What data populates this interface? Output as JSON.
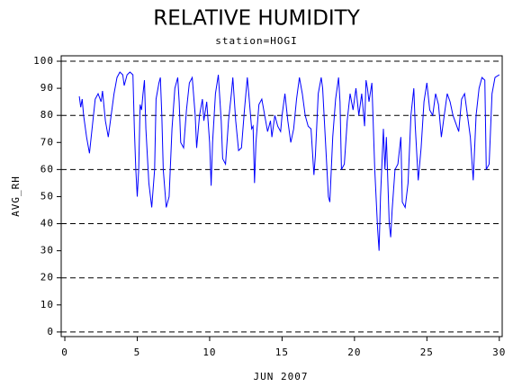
{
  "chart_data": {
    "type": "line",
    "title": "RELATIVE HUMIDITY",
    "subtitle": "station=HOGI",
    "x_label": "JUN 2007",
    "y_label": "AVG_RH",
    "x": [
      1.0,
      1.1,
      1.2,
      1.3,
      1.5,
      1.7,
      1.9,
      2.1,
      2.3,
      2.5,
      2.6,
      2.8,
      3.0,
      3.2,
      3.4,
      3.6,
      3.8,
      4.0,
      4.1,
      4.3,
      4.5,
      4.7,
      4.8,
      4.9,
      5.0,
      5.1,
      5.2,
      5.3,
      5.4,
      5.5,
      5.6,
      5.8,
      6.0,
      6.2,
      6.3,
      6.5,
      6.6,
      6.7,
      6.8,
      7.0,
      7.2,
      7.4,
      7.6,
      7.8,
      7.9,
      8.0,
      8.2,
      8.4,
      8.6,
      8.8,
      9.0,
      9.1,
      9.3,
      9.5,
      9.6,
      9.8,
      10.0,
      10.1,
      10.2,
      10.4,
      10.6,
      10.8,
      10.9,
      11.1,
      11.3,
      11.5,
      11.6,
      11.8,
      12.0,
      12.2,
      12.4,
      12.6,
      12.7,
      12.9,
      13.0,
      13.1,
      13.2,
      13.4,
      13.6,
      13.8,
      14.0,
      14.2,
      14.3,
      14.5,
      14.7,
      14.9,
      15.0,
      15.2,
      15.4,
      15.6,
      15.8,
      16.0,
      16.2,
      16.4,
      16.6,
      16.8,
      17.0,
      17.2,
      17.3,
      17.5,
      17.7,
      17.8,
      18.0,
      18.2,
      18.3,
      18.5,
      18.7,
      18.9,
      19.0,
      19.1,
      19.3,
      19.5,
      19.7,
      19.9,
      20.1,
      20.3,
      20.5,
      20.7,
      20.8,
      20.9,
      21.0,
      21.2,
      21.4,
      21.6,
      21.7,
      21.8,
      22.0,
      22.1,
      22.2,
      22.4,
      22.5,
      22.6,
      22.8,
      23.0,
      23.2,
      23.3,
      23.5,
      23.7,
      23.9,
      24.1,
      24.2,
      24.4,
      24.6,
      24.8,
      25.0,
      25.2,
      25.4,
      25.6,
      25.8,
      26.0,
      26.2,
      26.4,
      26.6,
      26.8,
      27.0,
      27.2,
      27.4,
      27.6,
      27.8,
      28.0,
      28.2,
      28.4,
      28.6,
      28.8,
      29.0,
      29.1,
      29.3,
      29.5,
      29.7,
      30.0
    ],
    "values": [
      87,
      83,
      86,
      80,
      72,
      66,
      76,
      86,
      88,
      85,
      89,
      78,
      72,
      80,
      88,
      94,
      96,
      95,
      91,
      95,
      96,
      95,
      75,
      60,
      50,
      60,
      84,
      82,
      88,
      93,
      75,
      55,
      46,
      60,
      86,
      92,
      94,
      80,
      60,
      46,
      50,
      75,
      90,
      94,
      85,
      70,
      68,
      82,
      92,
      94,
      80,
      68,
      80,
      86,
      78,
      85,
      70,
      54,
      70,
      88,
      95,
      78,
      64,
      62,
      78,
      88,
      94,
      78,
      67,
      68,
      82,
      94,
      88,
      75,
      76,
      55,
      70,
      84,
      86,
      80,
      74,
      78,
      72,
      80,
      76,
      74,
      80,
      88,
      78,
      70,
      75,
      86,
      94,
      88,
      80,
      76,
      75,
      58,
      65,
      88,
      94,
      90,
      70,
      50,
      48,
      72,
      86,
      94,
      85,
      60,
      62,
      78,
      88,
      82,
      90,
      80,
      88,
      76,
      93,
      90,
      85,
      92,
      60,
      38,
      30,
      50,
      75,
      60,
      72,
      40,
      35,
      45,
      60,
      62,
      72,
      48,
      46,
      55,
      80,
      90,
      76,
      56,
      68,
      85,
      92,
      82,
      80,
      88,
      84,
      72,
      80,
      88,
      85,
      80,
      77,
      74,
      86,
      88,
      80,
      72,
      56,
      80,
      90,
      94,
      93,
      60,
      62,
      88,
      94,
      95
    ],
    "color": "#0000ff",
    "xlim": [
      -0.25,
      30.2
    ],
    "xticks": [
      0,
      5,
      10,
      15,
      20,
      25,
      30
    ],
    "ylim": [
      -1.7,
      102
    ],
    "yticks": [
      0,
      10,
      20,
      30,
      40,
      50,
      60,
      70,
      80,
      90,
      100
    ],
    "ygrid": [
      0,
      20,
      40,
      60,
      80,
      100
    ]
  }
}
